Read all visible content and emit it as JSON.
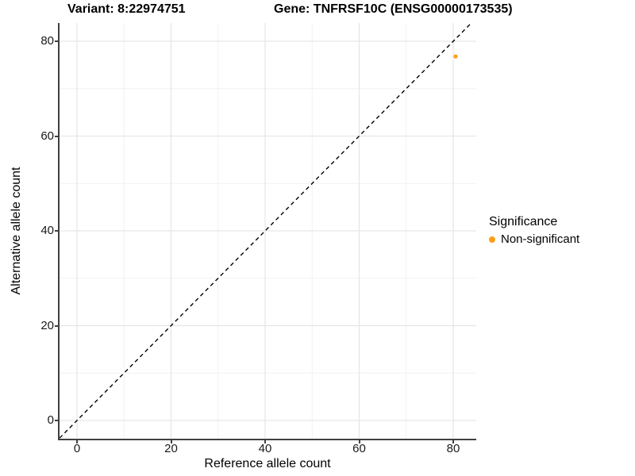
{
  "chart_data": {
    "type": "scatter",
    "title_left": "Variant: 8:22974751",
    "title_right": "Gene: TNFRSF10C (ENSG00000173535)",
    "xlabel": "Reference allele count",
    "ylabel": "Alternative allele count",
    "x_ticks": [
      0,
      20,
      40,
      60,
      80
    ],
    "y_ticks": [
      0,
      20,
      40,
      60,
      80
    ],
    "xlim": [
      -3.7,
      84.9
    ],
    "ylim": [
      -3.85,
      83.85
    ],
    "grid": {
      "major": true,
      "minor": true
    },
    "identity_line": {
      "equation": "y = x",
      "style": "dashed",
      "color": "#000000"
    },
    "points": [
      {
        "x": 80.5,
        "y": 76.8,
        "series": "Non-significant"
      }
    ],
    "series_colors": {
      "Non-significant": "#F9A01B"
    },
    "legend": {
      "title": "Significance",
      "position": "right",
      "entries": [
        {
          "label": "Non-significant",
          "color": "#F9A01B"
        }
      ]
    },
    "colors": {
      "grid_major": "#E6E6E6",
      "grid_minor": "#F1F1F1",
      "axis_line": "#404040",
      "tick_label": "#1A1A1A"
    }
  }
}
